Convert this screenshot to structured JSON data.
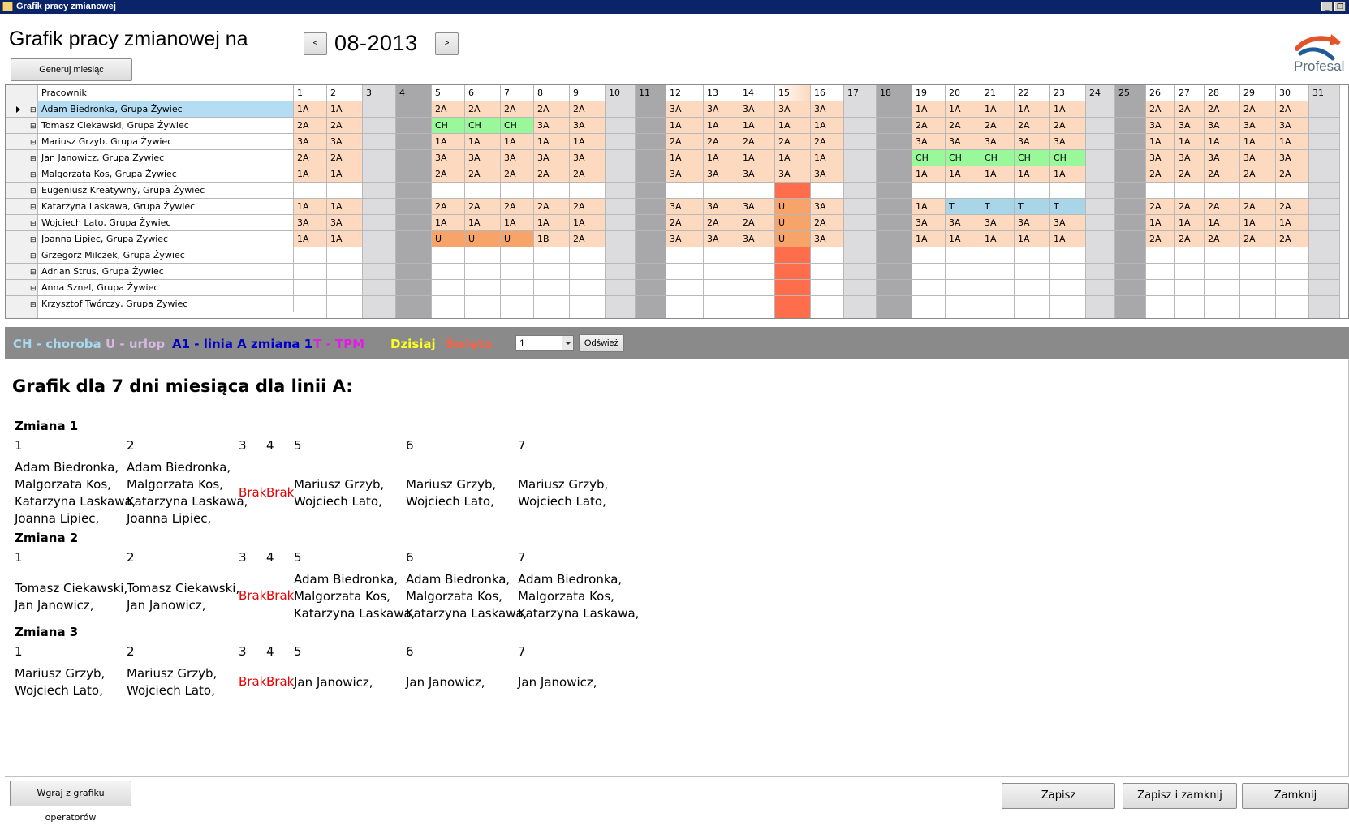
{
  "window": {
    "title": "Grafik pracy zmianowej"
  },
  "header": {
    "title": "Grafik pracy zmianowej na",
    "month": "08-2013",
    "prev_label": "<",
    "next_label": ">",
    "generate_label": "Generuj miesiąc",
    "logo_text": "Profesal"
  },
  "colors": {
    "1A": "#fdd9bf",
    "2A": "#fdd9bf",
    "3A": "#fdd9bf",
    "1B": "#fdd9bf",
    "CH": "#99f99a",
    "U": "#f7a46a",
    "T": "#a8d5e8",
    "weekend_light": "#dcdcde",
    "weekend_dark": "#a8a8aa",
    "holiday": "#ff6e4c",
    "selected": "#b4dcf2"
  },
  "grid": {
    "name_header": "Pracownik",
    "weekend_light": [
      3,
      10,
      17,
      24,
      31
    ],
    "weekend_dark": [
      4,
      11,
      18,
      25
    ],
    "holiday_day": 15,
    "rows": [
      {
        "name": "Adam Biedronka, Grupa Żywiec",
        "selected": true,
        "cells": [
          "1A",
          "1A",
          "",
          "",
          "2A",
          "2A",
          "2A",
          "2A",
          "2A",
          "",
          "",
          "3A",
          "3A",
          "3A",
          "3A",
          "3A",
          "",
          "",
          "1A",
          "1A",
          "1A",
          "1A",
          "1A",
          "",
          "",
          "2A",
          "2A",
          "2A",
          "2A",
          "2A",
          ""
        ]
      },
      {
        "name": "Tomasz Ciekawski, Grupa Żywiec",
        "cells": [
          "2A",
          "2A",
          "",
          "",
          "CH",
          "CH",
          "CH",
          "3A",
          "3A",
          "",
          "",
          "1A",
          "1A",
          "1A",
          "1A",
          "1A",
          "",
          "",
          "2A",
          "2A",
          "2A",
          "2A",
          "2A",
          "",
          "",
          "3A",
          "3A",
          "3A",
          "3A",
          "3A",
          ""
        ]
      },
      {
        "name": "Mariusz Grzyb, Grupa Żywiec",
        "cells": [
          "3A",
          "3A",
          "",
          "",
          "1A",
          "1A",
          "1A",
          "1A",
          "1A",
          "",
          "",
          "2A",
          "2A",
          "2A",
          "2A",
          "2A",
          "",
          "",
          "3A",
          "3A",
          "3A",
          "3A",
          "3A",
          "",
          "",
          "1A",
          "1A",
          "1A",
          "1A",
          "1A",
          ""
        ]
      },
      {
        "name": "Jan Janowicz, Grupa Żywiec",
        "cells": [
          "2A",
          "2A",
          "",
          "",
          "3A",
          "3A",
          "3A",
          "3A",
          "3A",
          "",
          "",
          "1A",
          "1A",
          "1A",
          "1A",
          "1A",
          "",
          "",
          "CH",
          "CH",
          "CH",
          "CH",
          "CH",
          "",
          "",
          "3A",
          "3A",
          "3A",
          "3A",
          "3A",
          ""
        ]
      },
      {
        "name": "Malgorzata Kos, Grupa Żywiec",
        "cells": [
          "1A",
          "1A",
          "",
          "",
          "2A",
          "2A",
          "2A",
          "2A",
          "2A",
          "",
          "",
          "3A",
          "3A",
          "3A",
          "3A",
          "3A",
          "",
          "",
          "1A",
          "1A",
          "1A",
          "1A",
          "1A",
          "",
          "",
          "2A",
          "2A",
          "2A",
          "2A",
          "2A",
          ""
        ]
      },
      {
        "name": "Eugeniusz Kreatywny, Grupa Żywiec",
        "cells": [
          "",
          "",
          "",
          "",
          "",
          "",
          "",
          "",
          "",
          "",
          "",
          "",
          "",
          "",
          "",
          "",
          "",
          "",
          "",
          "",
          "",
          "",
          "",
          "",
          "",
          "",
          "",
          "",
          "",
          "",
          ""
        ]
      },
      {
        "name": "Katarzyna Laskawa, Grupa Żywiec",
        "cells": [
          "1A",
          "1A",
          "",
          "",
          "2A",
          "2A",
          "2A",
          "2A",
          "2A",
          "",
          "",
          "3A",
          "3A",
          "3A",
          "U",
          "3A",
          "",
          "",
          "1A",
          "T",
          "T",
          "T",
          "T",
          "",
          "",
          "2A",
          "2A",
          "2A",
          "2A",
          "2A",
          ""
        ]
      },
      {
        "name": "Wojciech Lato, Grupa Żywiec",
        "cells": [
          "3A",
          "3A",
          "",
          "",
          "1A",
          "1A",
          "1A",
          "1A",
          "1A",
          "",
          "",
          "2A",
          "2A",
          "2A",
          "U",
          "2A",
          "",
          "",
          "3A",
          "3A",
          "3A",
          "3A",
          "3A",
          "",
          "",
          "1A",
          "1A",
          "1A",
          "1A",
          "1A",
          ""
        ]
      },
      {
        "name": "Joanna Lipiec, Grupa Żywiec",
        "cells": [
          "1A",
          "1A",
          "",
          "",
          "U",
          "U",
          "U",
          "1B",
          "2A",
          "",
          "",
          "3A",
          "3A",
          "3A",
          "U",
          "3A",
          "",
          "",
          "1A",
          "1A",
          "1A",
          "1A",
          "1A",
          "",
          "",
          "2A",
          "2A",
          "2A",
          "2A",
          "2A",
          ""
        ]
      },
      {
        "name": "Grzegorz Milczek, Grupa Żywiec",
        "cells": [
          "",
          "",
          "",
          "",
          "",
          "",
          "",
          "",
          "",
          "",
          "",
          "",
          "",
          "",
          "",
          "",
          "",
          "",
          "",
          "",
          "",
          "",
          "",
          "",
          "",
          "",
          "",
          "",
          "",
          "",
          ""
        ]
      },
      {
        "name": "Adrian Strus, Grupa Żywiec",
        "cells": [
          "",
          "",
          "",
          "",
          "",
          "",
          "",
          "",
          "",
          "",
          "",
          "",
          "",
          "",
          "",
          "",
          "",
          "",
          "",
          "",
          "",
          "",
          "",
          "",
          "",
          "",
          "",
          "",
          "",
          "",
          ""
        ]
      },
      {
        "name": "Anna Sznel, Grupa Żywiec",
        "cells": [
          "",
          "",
          "",
          "",
          "",
          "",
          "",
          "",
          "",
          "",
          "",
          "",
          "",
          "",
          "",
          "",
          "",
          "",
          "",
          "",
          "",
          "",
          "",
          "",
          "",
          "",
          "",
          "",
          "",
          "",
          ""
        ]
      },
      {
        "name": "Krzysztof Twórczy, Grupa Żywiec",
        "cells": [
          "",
          "",
          "",
          "",
          "",
          "",
          "",
          "",
          "",
          "",
          "",
          "",
          "",
          "",
          "",
          "",
          "",
          "",
          "",
          "",
          "",
          "",
          "",
          "",
          "",
          "",
          "",
          "",
          "",
          "",
          ""
        ]
      }
    ]
  },
  "legend": {
    "choroba": "CH - choroba",
    "urlop": "U - urlop",
    "linia": "A1 - linia A zmiana 1",
    "tpm": "T - TPM",
    "dzisiaj": "Dzisiaj",
    "swieto": "Święto",
    "select_value": "1",
    "refresh_label": "Odśwież",
    "colors": {
      "choroba": "#a6d8f0",
      "urlop": "#d8b8e0",
      "linia": "#0000c8",
      "tpm": "#e020e0",
      "dzisiaj": "#ffff20",
      "swieto": "#ff6040"
    }
  },
  "report": {
    "title": "Grafik dla 7 dni miesiąca dla linii A:",
    "shifts": [
      {
        "label": "Zmiana 1",
        "days": [
          {
            "day": "1",
            "names": [
              "Adam Biedronka,",
              "Malgorzata Kos,",
              "Katarzyna Laskawa,",
              "Joanna Lipiec,"
            ]
          },
          {
            "day": "2",
            "names": [
              "Adam Biedronka,",
              "Malgorzata Kos,",
              "Katarzyna Laskawa,",
              "Joanna Lipiec,"
            ]
          },
          {
            "day": "3",
            "text": "Brak"
          },
          {
            "day": "4",
            "text": "Brak"
          },
          {
            "day": "5",
            "names": [
              "Mariusz Grzyb,",
              "Wojciech Lato,"
            ]
          },
          {
            "day": "6",
            "names": [
              "Mariusz Grzyb,",
              "Wojciech Lato,"
            ]
          },
          {
            "day": "7",
            "names": [
              "Mariusz Grzyb,",
              "Wojciech Lato,"
            ]
          }
        ]
      },
      {
        "label": "Zmiana 2",
        "days": [
          {
            "day": "1",
            "names": [
              "Tomasz Ciekawski,",
              "Jan Janowicz,"
            ]
          },
          {
            "day": "2",
            "names": [
              "Tomasz Ciekawski,",
              "Jan Janowicz,"
            ]
          },
          {
            "day": "3",
            "text": "Brak"
          },
          {
            "day": "4",
            "text": "Brak"
          },
          {
            "day": "5",
            "names": [
              "Adam Biedronka,",
              "Malgorzata Kos,",
              "Katarzyna Laskawa,"
            ]
          },
          {
            "day": "6",
            "names": [
              "Adam Biedronka,",
              "Malgorzata Kos,",
              "Katarzyna Laskawa,"
            ]
          },
          {
            "day": "7",
            "names": [
              "Adam Biedronka,",
              "Malgorzata Kos,",
              "Katarzyna Laskawa,"
            ]
          }
        ]
      },
      {
        "label": "Zmiana 3",
        "days": [
          {
            "day": "1",
            "names": [
              "Mariusz Grzyb,",
              "Wojciech Lato,"
            ]
          },
          {
            "day": "2",
            "names": [
              "Mariusz Grzyb,",
              "Wojciech Lato,"
            ]
          },
          {
            "day": "3",
            "text": "Brak"
          },
          {
            "day": "4",
            "text": "Brak"
          },
          {
            "day": "5",
            "names": [
              "Jan Janowicz,"
            ]
          },
          {
            "day": "6",
            "names": [
              "Jan Janowicz,"
            ]
          },
          {
            "day": "7",
            "names": [
              "Jan Janowicz,"
            ]
          }
        ]
      }
    ]
  },
  "footer": {
    "import_label": "Wgraj z grafiku operatorów",
    "save_label": "Zapisz",
    "save_close_label": "Zapisz i zamknij",
    "close_label": "Zamknij"
  }
}
